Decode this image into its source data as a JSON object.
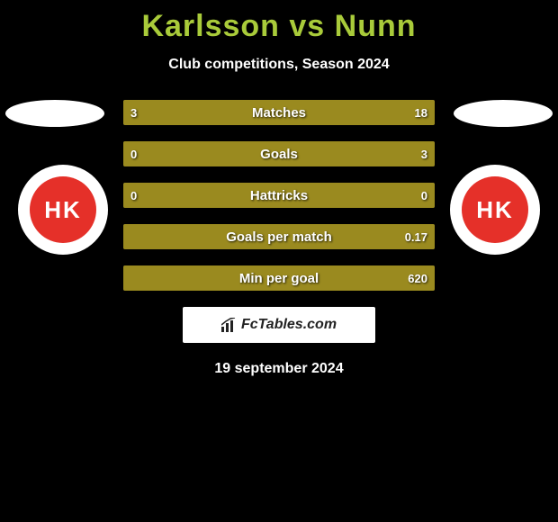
{
  "title": "Karlsson vs Nunn",
  "subtitle": "Club competitions, Season 2024",
  "date": "19 september 2024",
  "brand": "FcTables.com",
  "badge_text": "HK",
  "colors": {
    "left_fill": "#9a8a1f",
    "right_fill": "#9a8a1f",
    "row_bg_left": "#4b4b4b",
    "row_bg_right": "#4b4b4b",
    "title": "#a9cb3a",
    "text": "#ffffff",
    "badge_red": "#e53029",
    "background": "#000000"
  },
  "rows": [
    {
      "label": "Matches",
      "left": "3",
      "right": "18",
      "left_pct": 14,
      "right_pct": 86
    },
    {
      "label": "Goals",
      "left": "0",
      "right": "3",
      "left_pct": 0,
      "right_pct": 100
    },
    {
      "label": "Hattricks",
      "left": "0",
      "right": "0",
      "left_pct": 50,
      "right_pct": 50
    },
    {
      "label": "Goals per match",
      "left": "",
      "right": "0.17",
      "left_pct": 0,
      "right_pct": 100
    },
    {
      "label": "Min per goal",
      "left": "",
      "right": "620",
      "left_pct": 0,
      "right_pct": 100
    }
  ]
}
